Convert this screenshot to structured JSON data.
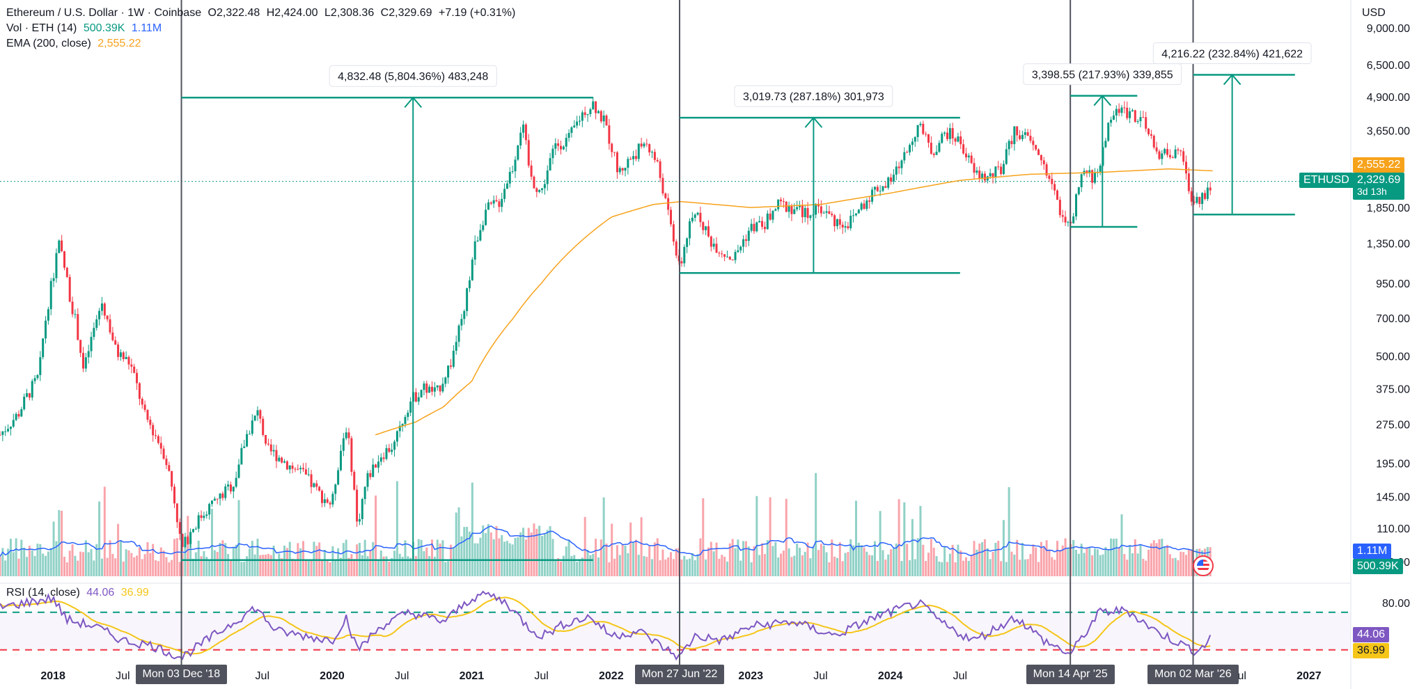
{
  "legend": {
    "title": "Ethereum / U.S. Dollar · 1W · Coinbase",
    "open": "O2,322.48",
    "high": "H2,424.00",
    "low": "L2,308.36",
    "close": "C2,329.69",
    "change": "+7.19 (+0.31%)",
    "vol_label": "Vol · ETH (14)",
    "vol_value": "500.39K",
    "vol_ma": "1.11M",
    "ema_label": "EMA (200, close)",
    "ema_value": "2,555.22",
    "rsi_label": "RSI (14, close)",
    "rsi_value": "44.06",
    "rsi_ma": "36.99"
  },
  "axis": {
    "currency": "USD",
    "price_ticks": [
      {
        "label": "9,000.00",
        "v": 9000
      },
      {
        "label": "6,500.00",
        "v": 6500
      },
      {
        "label": "4,900.00",
        "v": 4900
      },
      {
        "label": "3,650.00",
        "v": 3650
      },
      {
        "label": "1,850.00",
        "v": 1850
      },
      {
        "label": "1,350.00",
        "v": 1350
      },
      {
        "label": "950.00",
        "v": 950
      },
      {
        "label": "700.00",
        "v": 700
      },
      {
        "label": "500.00",
        "v": 500
      },
      {
        "label": "375.00",
        "v": 375
      },
      {
        "label": "275.00",
        "v": 275
      },
      {
        "label": "195.00",
        "v": 195
      },
      {
        "label": "145.00",
        "v": 145
      },
      {
        "label": "110.00",
        "v": 110
      },
      {
        "label": "82.00",
        "v": 82
      }
    ],
    "rsi_ticks": [
      {
        "label": "80.00",
        "v": 80
      }
    ],
    "time_ticks": [
      {
        "label": "2018",
        "t": 2018.0,
        "bold": true
      },
      {
        "label": "Jul",
        "t": 2018.5
      },
      {
        "label": "Jul",
        "t": 2019.5
      },
      {
        "label": "2020",
        "t": 2020.0,
        "bold": true
      },
      {
        "label": "Jul",
        "t": 2020.5
      },
      {
        "label": "2021",
        "t": 2021.0,
        "bold": true
      },
      {
        "label": "Jul",
        "t": 2021.5
      },
      {
        "label": "2022",
        "t": 2022.0,
        "bold": true
      },
      {
        "label": "2023",
        "t": 2023.0,
        "bold": true
      },
      {
        "label": "Jul",
        "t": 2023.5
      },
      {
        "label": "2024",
        "t": 2024.0,
        "bold": true
      },
      {
        "label": "Jul",
        "t": 2024.5
      },
      {
        "label": "2",
        "t": 2025.0,
        "bold": true
      },
      {
        "label": "Jul",
        "t": 2026.5
      },
      {
        "label": "2027",
        "t": 2027.0,
        "bold": true
      }
    ]
  },
  "badges": {
    "ema": "2,555.22",
    "symbol": "ETHUSD",
    "price": "2,329.69",
    "countdown": "3d 13h",
    "vol_ma": "1.11M",
    "vol": "500.39K",
    "rsi": "44.06",
    "rsi_ma": "36.99"
  },
  "markers": [
    {
      "t": 2018.92,
      "label": "Mon 03 Dec '18"
    },
    {
      "t": 2022.49,
      "label": "Mon 27 Jun '22"
    },
    {
      "t": 2025.29,
      "label": "Mon 14 Apr '25"
    },
    {
      "t": 2026.17,
      "label": "Mon 02 Mar '26"
    }
  ],
  "measures": [
    {
      "t0": 2018.92,
      "t1": 2021.87,
      "tArrow": 2020.58,
      "low": 83,
      "high": 4870,
      "label": "4,832.48 (5,804.36%) 483,248"
    },
    {
      "t0": 2022.49,
      "t1": 2024.5,
      "tArrow": 2023.45,
      "low": 1040,
      "high": 4080,
      "label": "3,019.73 (287.18%) 301,973"
    },
    {
      "t0": 2025.29,
      "t1": 2025.77,
      "tArrow": 2025.52,
      "low": 1560,
      "high": 4950,
      "label": "3,398.55 (217.93%) 339,855"
    },
    {
      "t0": 2026.17,
      "t1": 2026.9,
      "tArrow": 2026.45,
      "low": 1740,
      "high": 5950,
      "label": "4,216.22 (232.84%) 421,622"
    }
  ],
  "colors": {
    "up": "#089981",
    "down": "#f23645",
    "ema": "#f7a21b",
    "vol_ma": "#2962ff",
    "rsi": "#7e57c2",
    "rsi_ma": "#f5c518",
    "measure": "#089981",
    "marker": "#50535e"
  },
  "chart_data": {
    "type": "candlestick",
    "title": "Ethereum / U.S. Dollar · 1W · Coinbase",
    "y_scale": "log",
    "ylim": [
      72,
      11500
    ],
    "xlim": [
      2017.62,
      2027.3
    ],
    "price_anchors": [
      [
        2017.62,
        250
      ],
      [
        2017.75,
        300
      ],
      [
        2017.9,
        420
      ],
      [
        2018.0,
        1000
      ],
      [
        2018.04,
        1350
      ],
      [
        2018.12,
        850
      ],
      [
        2018.22,
        430
      ],
      [
        2018.3,
        650
      ],
      [
        2018.35,
        800
      ],
      [
        2018.45,
        520
      ],
      [
        2018.55,
        470
      ],
      [
        2018.65,
        300
      ],
      [
        2018.8,
        210
      ],
      [
        2018.92,
        90
      ],
      [
        2019.0,
        110
      ],
      [
        2019.1,
        130
      ],
      [
        2019.2,
        145
      ],
      [
        2019.3,
        165
      ],
      [
        2019.4,
        260
      ],
      [
        2019.48,
        310
      ],
      [
        2019.52,
        220
      ],
      [
        2019.6,
        210
      ],
      [
        2019.7,
        190
      ],
      [
        2019.8,
        175
      ],
      [
        2019.9,
        150
      ],
      [
        2020.0,
        135
      ],
      [
        2020.1,
        270
      ],
      [
        2020.18,
        110
      ],
      [
        2020.25,
        170
      ],
      [
        2020.35,
        210
      ],
      [
        2020.45,
        230
      ],
      [
        2020.55,
        330
      ],
      [
        2020.65,
        380
      ],
      [
        2020.75,
        360
      ],
      [
        2020.85,
        470
      ],
      [
        2020.95,
        730
      ],
      [
        2021.02,
        1300
      ],
      [
        2021.1,
        1800
      ],
      [
        2021.2,
        1950
      ],
      [
        2021.3,
        2700
      ],
      [
        2021.36,
        3900
      ],
      [
        2021.42,
        2400
      ],
      [
        2021.5,
        2100
      ],
      [
        2021.6,
        3200
      ],
      [
        2021.7,
        3400
      ],
      [
        2021.8,
        4300
      ],
      [
        2021.87,
        4650
      ],
      [
        2021.95,
        3900
      ],
      [
        2022.05,
        2500
      ],
      [
        2022.15,
        2900
      ],
      [
        2022.25,
        3300
      ],
      [
        2022.33,
        2700
      ],
      [
        2022.4,
        1800
      ],
      [
        2022.49,
        1050
      ],
      [
        2022.55,
        1500
      ],
      [
        2022.62,
        1800
      ],
      [
        2022.7,
        1400
      ],
      [
        2022.8,
        1250
      ],
      [
        2022.88,
        1180
      ],
      [
        2023.0,
        1550
      ],
      [
        2023.1,
        1600
      ],
      [
        2023.2,
        1900
      ],
      [
        2023.3,
        1850
      ],
      [
        2023.4,
        1750
      ],
      [
        2023.5,
        1850
      ],
      [
        2023.6,
        1650
      ],
      [
        2023.7,
        1600
      ],
      [
        2023.8,
        1900
      ],
      [
        2023.9,
        2200
      ],
      [
        2024.0,
        2300
      ],
      [
        2024.1,
        2900
      ],
      [
        2024.2,
        3800
      ],
      [
        2024.3,
        3000
      ],
      [
        2024.4,
        3600
      ],
      [
        2024.5,
        3300
      ],
      [
        2024.6,
        2500
      ],
      [
        2024.7,
        2400
      ],
      [
        2024.8,
        2600
      ],
      [
        2024.9,
        3700
      ],
      [
        2025.0,
        3300
      ],
      [
        2025.1,
        2700
      ],
      [
        2025.2,
        1900
      ],
      [
        2025.29,
        1500
      ],
      [
        2025.38,
        2500
      ],
      [
        2025.48,
        2400
      ],
      [
        2025.55,
        3600
      ],
      [
        2025.62,
        4400
      ],
      [
        2025.72,
        4300
      ],
      [
        2025.8,
        4000
      ],
      [
        2025.9,
        3000
      ],
      [
        2026.0,
        3000
      ],
      [
        2026.08,
        2900
      ],
      [
        2026.17,
        1900
      ],
      [
        2026.25,
        2100
      ],
      [
        2026.31,
        2330
      ]
    ],
    "ema_anchors": [
      [
        2020.31,
        250
      ],
      [
        2020.6,
        280
      ],
      [
        2020.8,
        320
      ],
      [
        2021.0,
        400
      ],
      [
        2021.3,
        700
      ],
      [
        2021.5,
        950
      ],
      [
        2021.8,
        1400
      ],
      [
        2022.0,
        1700
      ],
      [
        2022.3,
        1900
      ],
      [
        2022.5,
        1950
      ],
      [
        2023.0,
        1850
      ],
      [
        2023.5,
        1900
      ],
      [
        2024.0,
        2100
      ],
      [
        2024.5,
        2350
      ],
      [
        2025.0,
        2480
      ],
      [
        2025.5,
        2520
      ],
      [
        2026.0,
        2600
      ],
      [
        2026.31,
        2555
      ]
    ],
    "rsi_anchors": [
      [
        2017.62,
        75
      ],
      [
        2017.8,
        80
      ],
      [
        2018.0,
        85
      ],
      [
        2018.1,
        62
      ],
      [
        2018.3,
        55
      ],
      [
        2018.5,
        40
      ],
      [
        2018.7,
        35
      ],
      [
        2018.92,
        22
      ],
      [
        2019.1,
        40
      ],
      [
        2019.3,
        60
      ],
      [
        2019.45,
        75
      ],
      [
        2019.6,
        50
      ],
      [
        2019.8,
        45
      ],
      [
        2020.0,
        40
      ],
      [
        2020.1,
        65
      ],
      [
        2020.18,
        30
      ],
      [
        2020.35,
        55
      ],
      [
        2020.55,
        70
      ],
      [
        2020.8,
        60
      ],
      [
        2021.0,
        85
      ],
      [
        2021.1,
        90
      ],
      [
        2021.25,
        80
      ],
      [
        2021.4,
        55
      ],
      [
        2021.5,
        45
      ],
      [
        2021.7,
        60
      ],
      [
        2021.85,
        65
      ],
      [
        2022.0,
        45
      ],
      [
        2022.2,
        50
      ],
      [
        2022.4,
        30
      ],
      [
        2022.49,
        22
      ],
      [
        2022.6,
        45
      ],
      [
        2022.8,
        40
      ],
      [
        2023.0,
        55
      ],
      [
        2023.3,
        60
      ],
      [
        2023.6,
        45
      ],
      [
        2023.9,
        65
      ],
      [
        2024.2,
        80
      ],
      [
        2024.4,
        55
      ],
      [
        2024.6,
        40
      ],
      [
        2024.9,
        65
      ],
      [
        2025.1,
        40
      ],
      [
        2025.29,
        25
      ],
      [
        2025.5,
        70
      ],
      [
        2025.7,
        72
      ],
      [
        2025.9,
        50
      ],
      [
        2026.1,
        35
      ],
      [
        2026.2,
        28
      ],
      [
        2026.31,
        44
      ]
    ]
  }
}
